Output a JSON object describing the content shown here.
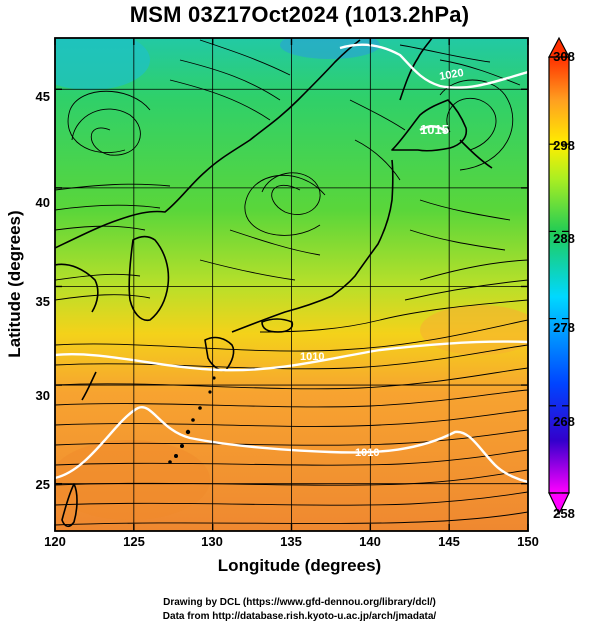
{
  "title": "MSM 03Z17Oct2024 (1013.2hPa)",
  "map": {
    "lon_range": [
      120,
      150
    ],
    "lat_range": [
      22.6,
      47.6
    ],
    "xlabel": "Longitude (degrees)",
    "ylabel": "Latitude  (degrees)",
    "lon_ticks": [
      "120",
      "125",
      "130",
      "135",
      "140",
      "145",
      "150"
    ],
    "lat_ticks": [
      "25",
      "30",
      "35",
      "40",
      "45"
    ],
    "grid": true,
    "background_field": "temperature (K) shaded; green north, orange south",
    "contour_labels": [
      "1020",
      "1015",
      "1010",
      "1010"
    ]
  },
  "colorbar": {
    "min": 258,
    "max": 308,
    "labels": [
      "308",
      "298",
      "288",
      "278",
      "268",
      "258"
    ],
    "colors": [
      "#ff00ff",
      "#3300cc",
      "#0044ff",
      "#00d8ff",
      "#22cc55",
      "#aaee22",
      "#ffee00",
      "#ffa020",
      "#ff3000"
    ]
  },
  "credits": {
    "line1": "Drawing by DCL (https://www.gfd-dennou.org/library/dcl/)",
    "line2": "Data from http://database.rish.kyoto-u.ac.jp/arch/jmadata/"
  }
}
